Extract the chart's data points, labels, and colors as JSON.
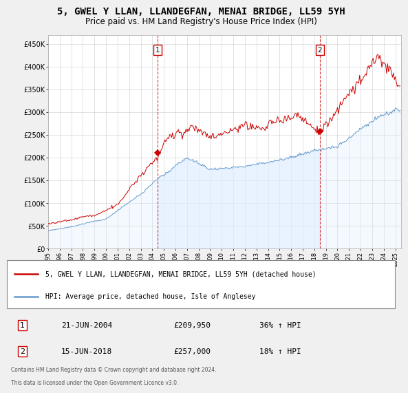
{
  "title": "5, GWEL Y LLAN, LLANDEGFAN, MENAI BRIDGE, LL59 5YH",
  "subtitle": "Price paid vs. HM Land Registry's House Price Index (HPI)",
  "title_fontsize": 10,
  "subtitle_fontsize": 8.5,
  "ylabel_ticks": [
    "£0",
    "£50K",
    "£100K",
    "£150K",
    "£200K",
    "£250K",
    "£300K",
    "£350K",
    "£400K",
    "£450K"
  ],
  "ytick_values": [
    0,
    50000,
    100000,
    150000,
    200000,
    250000,
    300000,
    350000,
    400000,
    450000
  ],
  "ylim": [
    0,
    470000
  ],
  "xlim_start": 1995.0,
  "xlim_end": 2025.5,
  "x_tick_labels": [
    "1995",
    "1996",
    "1997",
    "1998",
    "1999",
    "2000",
    "2001",
    "2002",
    "2003",
    "2004",
    "2005",
    "2006",
    "2007",
    "2008",
    "2009",
    "2010",
    "2011",
    "2012",
    "2013",
    "2014",
    "2015",
    "2016",
    "2017",
    "2018",
    "2019",
    "2020",
    "2021",
    "2022",
    "2023",
    "2024",
    "2025"
  ],
  "sale1_x": 2004.47,
  "sale1_y": 209950,
  "sale1_label": "1",
  "sale1_date": "21-JUN-2004",
  "sale1_price": "£209,950",
  "sale1_hpi": "36% ↑ HPI",
  "sale2_x": 2018.46,
  "sale2_y": 257000,
  "sale2_label": "2",
  "sale2_date": "15-JUN-2018",
  "sale2_price": "£257,000",
  "sale2_hpi": "18% ↑ HPI",
  "line_color_property": "#cc0000",
  "line_color_hpi": "#6699cc",
  "fill_color_hpi": "#ddeeff",
  "legend_property": "5, GWEL Y LLAN, LLANDEGFAN, MENAI BRIDGE, LL59 5YH (detached house)",
  "legend_hpi": "HPI: Average price, detached house, Isle of Anglesey",
  "footer1": "Contains HM Land Registry data © Crown copyright and database right 2024.",
  "footer2": "This data is licensed under the Open Government Licence v3.0.",
  "background_color": "#f0f0f0",
  "plot_bg_color": "#ffffff",
  "grid_color": "#cccccc"
}
